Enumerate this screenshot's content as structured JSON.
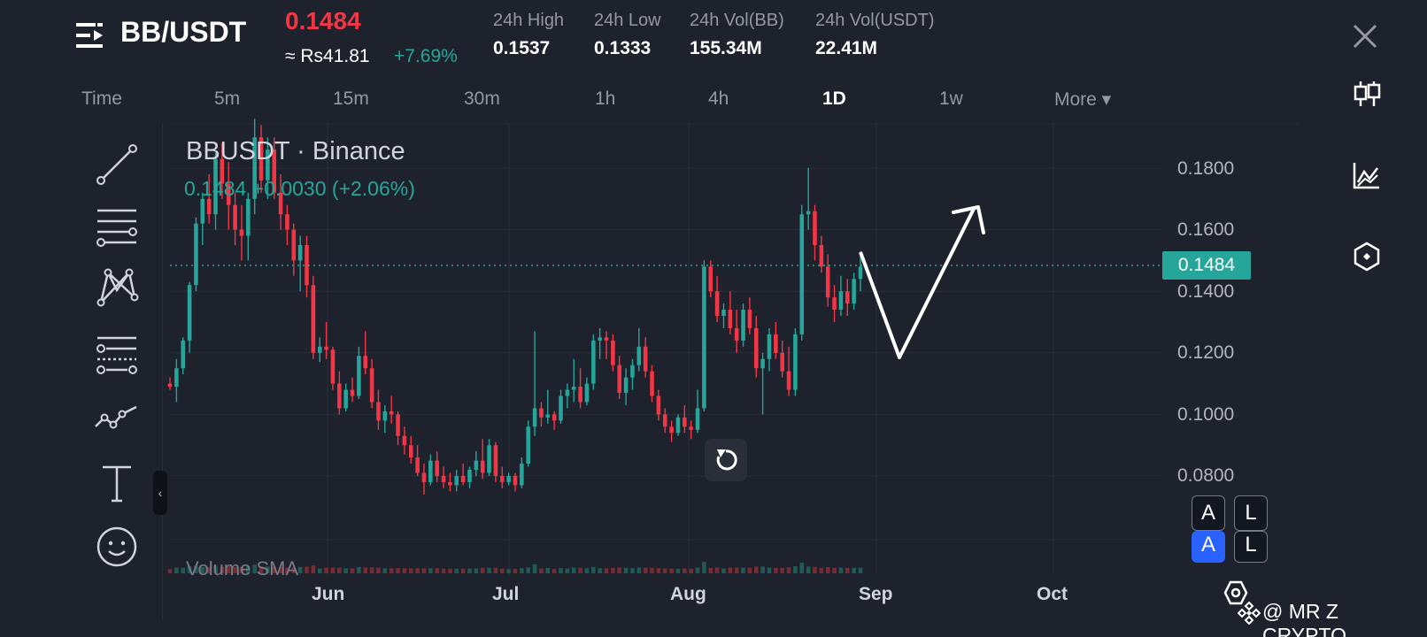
{
  "header": {
    "pair": "BB/USDT",
    "last_price": "0.1484",
    "fiat_price": "≈ Rs41.81",
    "pct_change": "+7.69%",
    "stats": [
      {
        "label": "24h High",
        "value": "0.1537"
      },
      {
        "label": "24h Low",
        "value": "0.1333"
      },
      {
        "label": "24h Vol(BB)",
        "value": "155.34M"
      },
      {
        "label": "24h Vol(USDT)",
        "value": "22.41M"
      }
    ]
  },
  "timeframes": [
    {
      "label": "Time"
    },
    {
      "label": "5m"
    },
    {
      "label": "15m"
    },
    {
      "label": "30m"
    },
    {
      "label": "1h"
    },
    {
      "label": "4h"
    },
    {
      "label": "1D"
    },
    {
      "label": "1w"
    },
    {
      "label": "More ▾"
    }
  ],
  "active_timeframe": "1D",
  "chart": {
    "symbol_label": "BBUSDT · Binance",
    "ohlc_line": "0.1484 +0.0030 (+2.06%)",
    "price_badge": "0.1484",
    "volume_label": "Volume SMA",
    "up_color": "#26a69a",
    "down_color": "#f23645"
  },
  "chart_data": {
    "type": "candlestick",
    "x_ticks": [
      "Jun",
      "Jul",
      "Aug",
      "Sep",
      "Oct"
    ],
    "y_ticks": [
      "0.1800",
      "0.1600",
      "0.1400",
      "0.1200",
      "0.1000",
      "0.0800"
    ],
    "ylim": [
      0.0768,
      0.196
    ],
    "current_price": 0.1484,
    "grid": true,
    "candles": [
      [
        0.11,
        0.112,
        0.108,
        0.109
      ],
      [
        0.109,
        0.118,
        0.104,
        0.115
      ],
      [
        0.115,
        0.125,
        0.113,
        0.124
      ],
      [
        0.124,
        0.143,
        0.12,
        0.142
      ],
      [
        0.142,
        0.164,
        0.14,
        0.162
      ],
      [
        0.162,
        0.172,
        0.155,
        0.17
      ],
      [
        0.17,
        0.178,
        0.162,
        0.165
      ],
      [
        0.165,
        0.185,
        0.16,
        0.183
      ],
      [
        0.183,
        0.188,
        0.17,
        0.175
      ],
      [
        0.175,
        0.182,
        0.16,
        0.168
      ],
      [
        0.168,
        0.172,
        0.155,
        0.16
      ],
      [
        0.16,
        0.168,
        0.15,
        0.158
      ],
      [
        0.158,
        0.172,
        0.15,
        0.17
      ],
      [
        0.17,
        0.196,
        0.165,
        0.19
      ],
      [
        0.19,
        0.194,
        0.172,
        0.176
      ],
      [
        0.176,
        0.19,
        0.17,
        0.186
      ],
      [
        0.186,
        0.19,
        0.17,
        0.172
      ],
      [
        0.172,
        0.178,
        0.16,
        0.165
      ],
      [
        0.165,
        0.168,
        0.155,
        0.16
      ],
      [
        0.16,
        0.162,
        0.145,
        0.15
      ],
      [
        0.15,
        0.158,
        0.14,
        0.155
      ],
      [
        0.155,
        0.158,
        0.138,
        0.142
      ],
      [
        0.142,
        0.145,
        0.118,
        0.12
      ],
      [
        0.12,
        0.125,
        0.117,
        0.122
      ],
      [
        0.122,
        0.13,
        0.118,
        0.121
      ],
      [
        0.121,
        0.122,
        0.108,
        0.11
      ],
      [
        0.11,
        0.114,
        0.1,
        0.102
      ],
      [
        0.102,
        0.11,
        0.101,
        0.108
      ],
      [
        0.108,
        0.112,
        0.104,
        0.106
      ],
      [
        0.106,
        0.122,
        0.105,
        0.119
      ],
      [
        0.119,
        0.127,
        0.113,
        0.115
      ],
      [
        0.115,
        0.118,
        0.102,
        0.104
      ],
      [
        0.104,
        0.108,
        0.095,
        0.098
      ],
      [
        0.098,
        0.103,
        0.094,
        0.101
      ],
      [
        0.101,
        0.106,
        0.097,
        0.1
      ],
      [
        0.1,
        0.101,
        0.09,
        0.093
      ],
      [
        0.093,
        0.096,
        0.087,
        0.09
      ],
      [
        0.09,
        0.093,
        0.084,
        0.086
      ],
      [
        0.086,
        0.09,
        0.08,
        0.081
      ],
      [
        0.081,
        0.084,
        0.074,
        0.078
      ],
      [
        0.078,
        0.087,
        0.077,
        0.085
      ],
      [
        0.085,
        0.088,
        0.078,
        0.08
      ],
      [
        0.08,
        0.083,
        0.076,
        0.078
      ],
      [
        0.078,
        0.081,
        0.075,
        0.077
      ],
      [
        0.077,
        0.082,
        0.075,
        0.08
      ],
      [
        0.08,
        0.084,
        0.077,
        0.078
      ],
      [
        0.078,
        0.083,
        0.076,
        0.082
      ],
      [
        0.082,
        0.088,
        0.08,
        0.085
      ],
      [
        0.085,
        0.092,
        0.079,
        0.081
      ],
      [
        0.081,
        0.092,
        0.08,
        0.09
      ],
      [
        0.09,
        0.091,
        0.078,
        0.08
      ],
      [
        0.08,
        0.083,
        0.076,
        0.078
      ],
      [
        0.078,
        0.081,
        0.077,
        0.08
      ],
      [
        0.08,
        0.081,
        0.075,
        0.077
      ],
      [
        0.077,
        0.086,
        0.076,
        0.084
      ],
      [
        0.084,
        0.098,
        0.083,
        0.096
      ],
      [
        0.096,
        0.127,
        0.093,
        0.102
      ],
      [
        0.102,
        0.104,
        0.096,
        0.099
      ],
      [
        0.099,
        0.108,
        0.097,
        0.1
      ],
      [
        0.1,
        0.101,
        0.095,
        0.098
      ],
      [
        0.098,
        0.108,
        0.097,
        0.106
      ],
      [
        0.106,
        0.11,
        0.102,
        0.108
      ],
      [
        0.108,
        0.118,
        0.104,
        0.109
      ],
      [
        0.109,
        0.115,
        0.102,
        0.104
      ],
      [
        0.104,
        0.112,
        0.103,
        0.11
      ],
      [
        0.11,
        0.126,
        0.108,
        0.124
      ],
      [
        0.124,
        0.128,
        0.118,
        0.125
      ],
      [
        0.125,
        0.127,
        0.118,
        0.124
      ],
      [
        0.124,
        0.126,
        0.114,
        0.116
      ],
      [
        0.116,
        0.119,
        0.105,
        0.107
      ],
      [
        0.107,
        0.115,
        0.103,
        0.112
      ],
      [
        0.112,
        0.118,
        0.108,
        0.116
      ],
      [
        0.116,
        0.128,
        0.114,
        0.122
      ],
      [
        0.122,
        0.125,
        0.112,
        0.114
      ],
      [
        0.114,
        0.116,
        0.104,
        0.106
      ],
      [
        0.106,
        0.108,
        0.098,
        0.1
      ],
      [
        0.1,
        0.102,
        0.094,
        0.096
      ],
      [
        0.096,
        0.098,
        0.091,
        0.094
      ],
      [
        0.094,
        0.1,
        0.093,
        0.099
      ],
      [
        0.099,
        0.103,
        0.094,
        0.096
      ],
      [
        0.096,
        0.098,
        0.092,
        0.095
      ],
      [
        0.095,
        0.108,
        0.094,
        0.102
      ],
      [
        0.102,
        0.15,
        0.101,
        0.148
      ],
      [
        0.148,
        0.15,
        0.138,
        0.14
      ],
      [
        0.14,
        0.145,
        0.13,
        0.132
      ],
      [
        0.132,
        0.136,
        0.128,
        0.134
      ],
      [
        0.134,
        0.14,
        0.126,
        0.128
      ],
      [
        0.128,
        0.134,
        0.12,
        0.124
      ],
      [
        0.124,
        0.136,
        0.122,
        0.134
      ],
      [
        0.134,
        0.138,
        0.126,
        0.128
      ],
      [
        0.128,
        0.132,
        0.112,
        0.115
      ],
      [
        0.115,
        0.12,
        0.1,
        0.118
      ],
      [
        0.118,
        0.128,
        0.114,
        0.126
      ],
      [
        0.126,
        0.13,
        0.118,
        0.12
      ],
      [
        0.12,
        0.124,
        0.112,
        0.114
      ],
      [
        0.114,
        0.122,
        0.106,
        0.108
      ],
      [
        0.108,
        0.128,
        0.106,
        0.126
      ],
      [
        0.126,
        0.168,
        0.124,
        0.165
      ],
      [
        0.165,
        0.18,
        0.16,
        0.166
      ],
      [
        0.166,
        0.168,
        0.15,
        0.155
      ],
      [
        0.155,
        0.158,
        0.146,
        0.148
      ],
      [
        0.148,
        0.152,
        0.135,
        0.138
      ],
      [
        0.138,
        0.142,
        0.13,
        0.134
      ],
      [
        0.134,
        0.145,
        0.132,
        0.14
      ],
      [
        0.14,
        0.144,
        0.132,
        0.136
      ],
      [
        0.136,
        0.146,
        0.134,
        0.144
      ],
      [
        0.144,
        0.153,
        0.14,
        0.148
      ]
    ]
  },
  "price_axis": [
    "0.1800",
    "0.1600",
    "0.1400",
    "0.1200",
    "0.1000",
    "0.0800"
  ],
  "date_axis": [
    "Jun",
    "Jul",
    "Aug",
    "Sep",
    "Oct"
  ],
  "buttons": {
    "a_label": "A",
    "l_label": "L"
  },
  "watermark": "@ MR Z CRYPTO"
}
